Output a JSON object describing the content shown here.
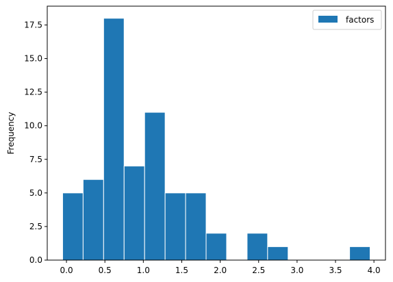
{
  "chart_data": {
    "type": "bar",
    "histogram": true,
    "bin_edges": [
      -0.05,
      0.216667,
      0.483333,
      0.75,
      1.016667,
      1.283333,
      1.55,
      1.816667,
      2.083333,
      2.35,
      2.616667,
      2.883333,
      3.15,
      3.416667,
      3.683333,
      3.95
    ],
    "series": [
      {
        "name": "factors",
        "values": [
          5,
          6,
          18,
          7,
          11,
          5,
          5,
          2,
          0,
          2,
          1,
          0,
          0,
          0,
          1
        ],
        "color": "#1f77b4"
      }
    ],
    "xlabel": "",
    "ylabel": "Frequency",
    "xlim": [
      -0.25,
      4.15
    ],
    "ylim": [
      0,
      18.9
    ],
    "xticks": [
      0.0,
      0.5,
      1.0,
      1.5,
      2.0,
      2.5,
      3.0,
      3.5,
      4.0
    ],
    "xtick_labels": [
      "0.0",
      "0.5",
      "1.0",
      "1.5",
      "2.0",
      "2.5",
      "3.0",
      "3.5",
      "4.0"
    ],
    "yticks": [
      0.0,
      2.5,
      5.0,
      7.5,
      10.0,
      12.5,
      15.0,
      17.5
    ],
    "ytick_labels": [
      "0.0",
      "2.5",
      "5.0",
      "7.5",
      "10.0",
      "12.5",
      "15.0",
      "17.5"
    ],
    "legend": {
      "position": "top-right",
      "entries": [
        "factors"
      ]
    },
    "grid": false,
    "edge_color": "#ffffff"
  }
}
